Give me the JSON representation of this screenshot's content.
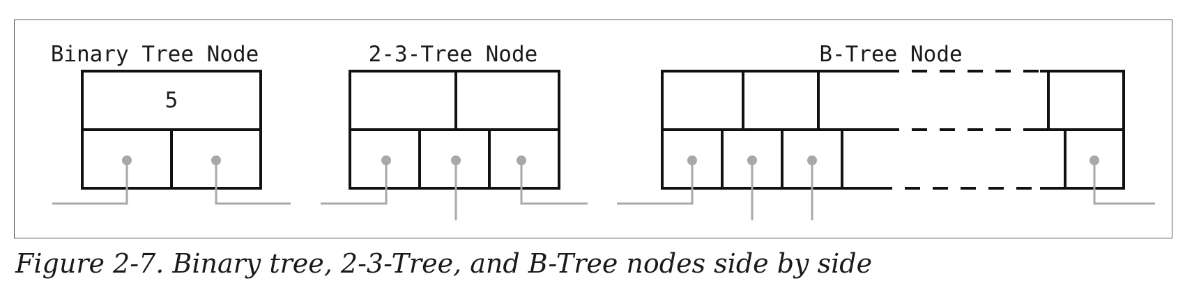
{
  "figure": {
    "caption": "Figure 2-7. Binary tree, 2-3-Tree, and B-Tree nodes side by side",
    "nodes": [
      {
        "title": "Binary Tree Node",
        "keys": [
          "5"
        ],
        "pointer_count": 2
      },
      {
        "title": "2-3-Tree Node",
        "keys": [
          "",
          ""
        ],
        "pointer_count": 3
      },
      {
        "title": "B-Tree Node",
        "keys": [
          "",
          "",
          ""
        ],
        "pointer_count": 4
      }
    ]
  },
  "colors": {
    "outline": "#111111",
    "pointer": "#a8a8a8",
    "frame": "#555555"
  }
}
